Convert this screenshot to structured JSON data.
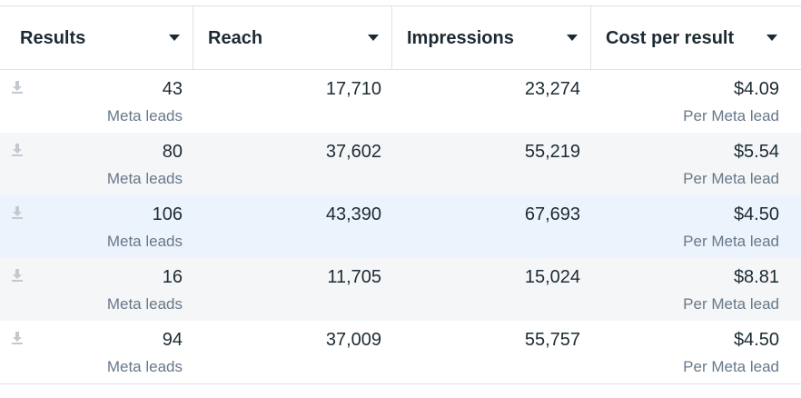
{
  "columns": [
    "Results",
    "Reach",
    "Impressions",
    "Cost per result"
  ],
  "rows": [
    {
      "results": "43",
      "results_sub": "Meta leads",
      "reach": "17,710",
      "impressions": "23,274",
      "cost": "$4.09",
      "cost_sub": "Per Meta lead"
    },
    {
      "results": "80",
      "results_sub": "Meta leads",
      "reach": "37,602",
      "impressions": "55,219",
      "cost": "$5.54",
      "cost_sub": "Per Meta lead"
    },
    {
      "results": "106",
      "results_sub": "Meta leads",
      "reach": "43,390",
      "impressions": "67,693",
      "cost": "$4.50",
      "cost_sub": "Per Meta lead"
    },
    {
      "results": "16",
      "results_sub": "Meta leads",
      "reach": "11,705",
      "impressions": "15,024",
      "cost": "$8.81",
      "cost_sub": "Per Meta lead"
    },
    {
      "results": "94",
      "results_sub": "Meta leads",
      "reach": "37,009",
      "impressions": "55,757",
      "cost": "$4.50",
      "cost_sub": "Per Meta lead"
    }
  ],
  "icons": {
    "row_icon": "download-icon",
    "sort_icon": "caret-down-icon"
  },
  "colors": {
    "text": "#1c2b33",
    "subtext": "#67788a",
    "alt_row": "#f5f6f7",
    "highlight_row": "#edf3fc"
  }
}
